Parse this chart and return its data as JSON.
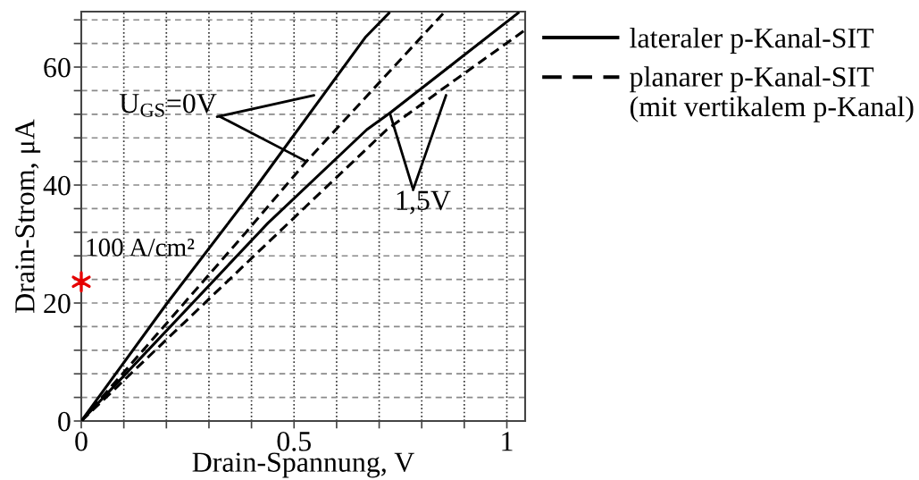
{
  "chart_data": {
    "type": "line",
    "xlabel": "Drain-Spannung, V",
    "ylabel": "Drain-Strom, μA",
    "xlim": [
      0,
      1.043
    ],
    "ylim": [
      0,
      69.4
    ],
    "xticks": [
      0,
      {
        "value": 0.1,
        "label": null
      },
      {
        "value": 0.2,
        "label": null
      },
      {
        "value": 0.3,
        "label": null
      },
      {
        "value": 0.4,
        "label": null
      },
      0.5,
      {
        "value": 0.6,
        "label": null
      },
      {
        "value": 0.7,
        "label": null
      },
      {
        "value": 0.8,
        "label": null
      },
      {
        "value": 0.9,
        "label": null
      },
      1
    ],
    "yticks": [
      0,
      {
        "value": 4,
        "label": null
      },
      {
        "value": 8,
        "label": null
      },
      {
        "value": 12,
        "label": null
      },
      {
        "value": 16,
        "label": null
      },
      20,
      {
        "value": 24,
        "label": null
      },
      {
        "value": 28,
        "label": null
      },
      {
        "value": 32,
        "label": null
      },
      {
        "value": 36,
        "label": null
      },
      40,
      {
        "value": 44,
        "label": null
      },
      {
        "value": 48,
        "label": null
      },
      {
        "value": 52,
        "label": null
      },
      {
        "value": 56,
        "label": null
      },
      60,
      {
        "value": 64,
        "label": null
      },
      {
        "value": 68,
        "label": null
      }
    ],
    "grid": true,
    "legend": "right",
    "series": [
      {
        "name": "lateraler p-Kanal-SIT",
        "color": "#000000",
        "line_style": "solid",
        "x": [
          0,
          0.202,
          0.414,
          0.667,
          0.725
        ],
        "values": [
          0,
          20,
          40,
          65.0,
          69.3
        ]
      },
      {
        "name": "planarer p-Kanal-SIT\n(mit vertikalem p-Kanal)",
        "color": "#000000",
        "line_style": "dashed",
        "x": [
          0,
          0.386,
          0.529,
          0.853
        ],
        "values": [
          0,
          31.9,
          44.0,
          69.3
        ]
      },
      {
        "color": "#000000",
        "line_style": "solid",
        "x": [
          0,
          0.438,
          0.671,
          0.725,
          1.029
        ],
        "values": [
          0,
          33.5,
          49.4,
          52.2,
          69.3
        ]
      },
      {
        "color": "#000000",
        "line_style": "dashed",
        "x": [
          0,
          0.47,
          0.718,
          0.851,
          1.043
        ],
        "values": [
          0,
          32.4,
          49.4,
          56.4,
          66.3
        ]
      },
      {
        "type": "scatter",
        "color": "#e60000",
        "marker": "cross",
        "x": [
          0
        ],
        "values": [
          23.6
        ]
      }
    ],
    "annotations": [
      {
        "text": "U$_{GS}$=0V",
        "x": 0.529,
        "y": 44.0
      },
      {
        "text": "1,5V",
        "x": 0.725,
        "y": 52.2
      },
      {
        "text": "100 A/cm²",
        "x": 0,
        "y": 23.6
      }
    ]
  }
}
